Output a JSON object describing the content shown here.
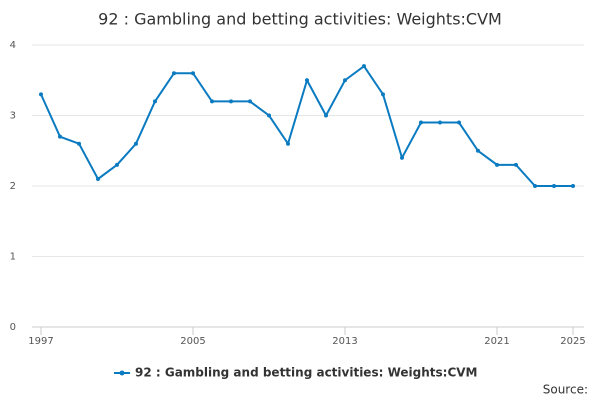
{
  "chart_data": {
    "type": "line",
    "title": "92 : Gambling and betting activities: Weights:CVM",
    "x": [
      1997,
      1998,
      1999,
      2000,
      2001,
      2002,
      2003,
      2004,
      2005,
      2006,
      2007,
      2008,
      2009,
      2010,
      2011,
      2012,
      2013,
      2014,
      2015,
      2016,
      2017,
      2018,
      2019,
      2020,
      2021,
      2022,
      2023,
      2024,
      2025
    ],
    "series": [
      {
        "name": "92 : Gambling and betting activities: Weights:CVM",
        "color": "#0b7bc1",
        "values": [
          3.3,
          2.7,
          2.6,
          2.1,
          2.3,
          2.6,
          3.2,
          3.6,
          3.6,
          3.2,
          3.2,
          3.2,
          3.0,
          2.6,
          3.5,
          3.0,
          3.5,
          3.7,
          3.3,
          2.4,
          2.9,
          2.9,
          2.9,
          2.5,
          2.3,
          2.3,
          2.0,
          2.0,
          2.0
        ]
      }
    ],
    "xlim": [
      1997,
      2025
    ],
    "xticks": [
      1997,
      2005,
      2013,
      2021,
      2025
    ],
    "ylim": [
      0,
      4
    ],
    "yticks": [
      0,
      1,
      2,
      3,
      4
    ],
    "grid": true,
    "source": "Source:"
  }
}
